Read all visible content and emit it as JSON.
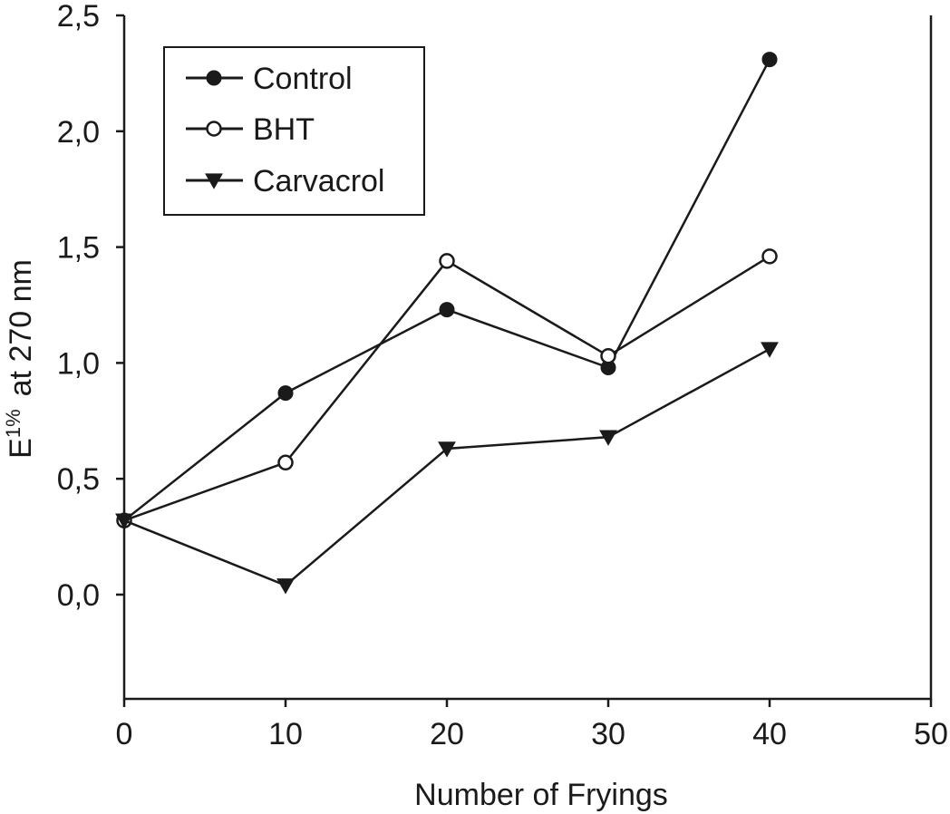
{
  "chart_data": {
    "type": "line",
    "title": "",
    "xlabel": "Number of Fryings",
    "ylabel": {
      "base": "E",
      "superscript": "1%",
      "rest": "at 270 nm"
    },
    "xlim": [
      0,
      50
    ],
    "ylim": [
      -0.45,
      2.5
    ],
    "x_ticks": [
      0,
      10,
      20,
      30,
      40,
      50
    ],
    "x_tick_labels": [
      "0",
      "10",
      "20",
      "30",
      "40",
      "50"
    ],
    "y_ticks": [
      0.0,
      0.5,
      1.0,
      1.5,
      2.0,
      2.5
    ],
    "y_tick_labels": [
      "0,0",
      "0,5",
      "1,0",
      "1,5",
      "2,0",
      "2,5"
    ],
    "grid": false,
    "legend_position": "top-left",
    "x": [
      0,
      10,
      20,
      30,
      40
    ],
    "series": [
      {
        "name": "Control",
        "marker": "filled-circle",
        "values": [
          0.32,
          0.87,
          1.23,
          0.98,
          2.31
        ]
      },
      {
        "name": "BHT",
        "marker": "open-circle",
        "values": [
          0.32,
          0.57,
          1.44,
          1.03,
          1.46
        ]
      },
      {
        "name": "Carvacrol",
        "marker": "filled-triangle-down",
        "values": [
          0.32,
          0.04,
          0.63,
          0.68,
          1.06
        ]
      }
    ],
    "colors": {
      "line": "#1a1a1a",
      "marker_fill_open": "#ffffff"
    }
  }
}
